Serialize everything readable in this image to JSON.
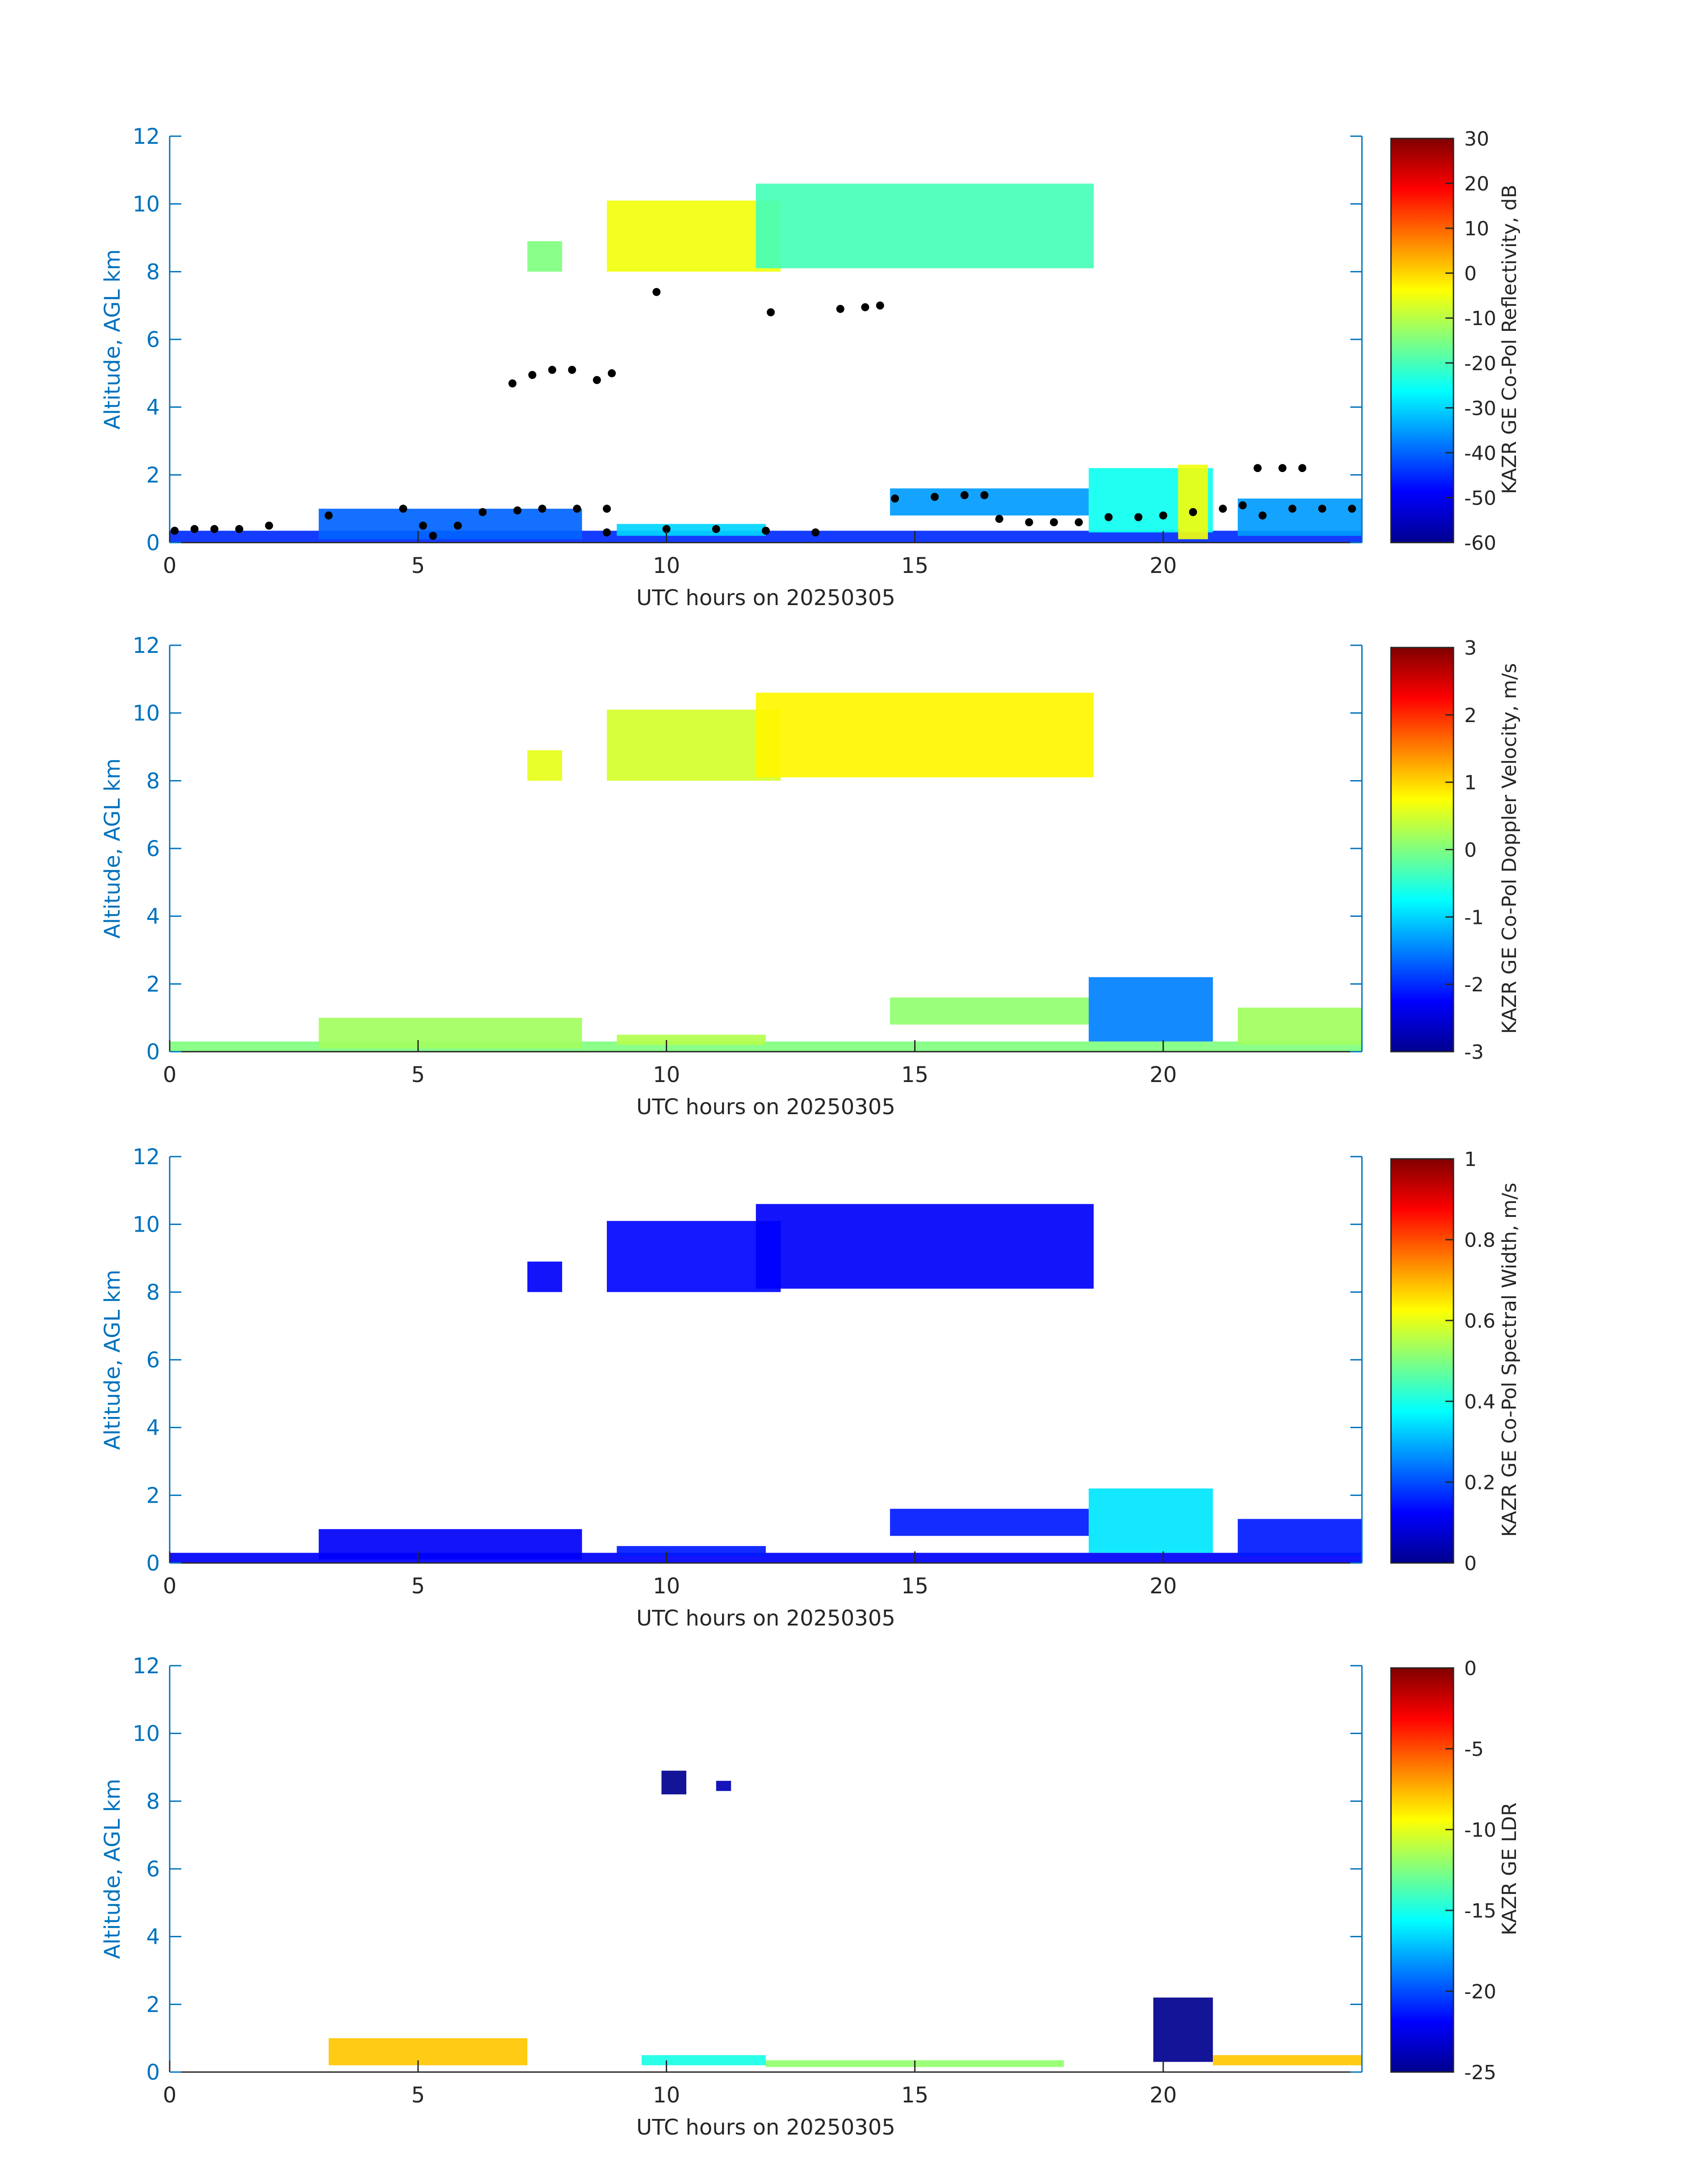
{
  "colormap": [
    "#00008f",
    "#0000ff",
    "#0080ff",
    "#00ffff",
    "#80ff80",
    "#ffff00",
    "#ff8000",
    "#ff0000",
    "#800000"
  ],
  "axis_color": "#0072bd",
  "chart_data": [
    {
      "type": "heatmap",
      "xlabel": "UTC hours on 20250305",
      "ylabel": "Altitude, AGL km",
      "xlim": [
        0,
        24
      ],
      "ylim": [
        0,
        12
      ],
      "xticks": [
        "0",
        "5",
        "10",
        "15",
        "20"
      ],
      "yticks": [
        "0",
        "2",
        "4",
        "6",
        "8",
        "10",
        "12"
      ],
      "colorbar": {
        "label": "KAZR GE Co-Pol Reflectivity, dB",
        "range": [
          -60,
          30
        ],
        "ticks": [
          "-60",
          "-50",
          "-40",
          "-30",
          "-20",
          "-10",
          "0",
          "10",
          "20",
          "30"
        ]
      },
      "regions": [
        {
          "x0": 7.2,
          "x1": 7.9,
          "y0": 8.0,
          "y1": 8.9,
          "v": -15
        },
        {
          "x0": 8.8,
          "x1": 12.3,
          "y0": 8.0,
          "y1": 10.1,
          "v": -5
        },
        {
          "x0": 11.8,
          "x1": 18.6,
          "y0": 8.1,
          "y1": 10.6,
          "v": -20
        },
        {
          "x0": 0,
          "x1": 24,
          "y0": 0.0,
          "y1": 0.35,
          "v": -45
        },
        {
          "x0": 3.0,
          "x1": 8.3,
          "y0": 0.1,
          "y1": 1.0,
          "v": -40
        },
        {
          "x0": 9.0,
          "x1": 12.0,
          "y0": 0.2,
          "y1": 0.55,
          "v": -30
        },
        {
          "x0": 14.5,
          "x1": 18.5,
          "y0": 0.8,
          "y1": 1.6,
          "v": -35
        },
        {
          "x0": 18.5,
          "x1": 21.0,
          "y0": 0.3,
          "y1": 2.2,
          "v": -25
        },
        {
          "x0": 20.3,
          "x1": 20.9,
          "y0": 0.1,
          "y1": 2.3,
          "v": -5
        },
        {
          "x0": 21.5,
          "x1": 24,
          "y0": 0.2,
          "y1": 1.3,
          "v": -35
        }
      ],
      "overlay_points": [
        [
          0.1,
          0.35
        ],
        [
          0.5,
          0.4
        ],
        [
          0.9,
          0.4
        ],
        [
          1.4,
          0.4
        ],
        [
          2.0,
          0.5
        ],
        [
          3.2,
          0.8
        ],
        [
          4.7,
          1.0
        ],
        [
          5.1,
          0.5
        ],
        [
          5.3,
          0.2
        ],
        [
          5.8,
          0.5
        ],
        [
          6.3,
          0.9
        ],
        [
          7.0,
          0.95
        ],
        [
          7.5,
          1.0
        ],
        [
          8.2,
          1.0
        ],
        [
          8.8,
          1.0
        ],
        [
          6.9,
          4.7
        ],
        [
          7.3,
          4.95
        ],
        [
          7.7,
          5.1
        ],
        [
          8.1,
          5.1
        ],
        [
          8.6,
          4.8
        ],
        [
          8.9,
          5.0
        ],
        [
          9.8,
          7.4
        ],
        [
          12.1,
          6.8
        ],
        [
          13.5,
          6.9
        ],
        [
          14.0,
          6.95
        ],
        [
          14.3,
          7.0
        ],
        [
          8.8,
          0.3
        ],
        [
          10.0,
          0.4
        ],
        [
          11.0,
          0.4
        ],
        [
          12.0,
          0.35
        ],
        [
          13.0,
          0.3
        ],
        [
          14.6,
          1.3
        ],
        [
          15.4,
          1.35
        ],
        [
          16.0,
          1.4
        ],
        [
          16.4,
          1.4
        ],
        [
          16.7,
          0.7
        ],
        [
          17.3,
          0.6
        ],
        [
          17.8,
          0.6
        ],
        [
          18.3,
          0.6
        ],
        [
          18.9,
          0.75
        ],
        [
          19.5,
          0.75
        ],
        [
          20.0,
          0.8
        ],
        [
          20.6,
          0.9
        ],
        [
          21.2,
          1.0
        ],
        [
          21.6,
          1.1
        ],
        [
          21.9,
          2.2
        ],
        [
          22.4,
          2.2
        ],
        [
          22.8,
          2.2
        ],
        [
          22.0,
          0.8
        ],
        [
          22.6,
          1.0
        ],
        [
          23.2,
          1.0
        ],
        [
          23.8,
          1.0
        ]
      ]
    },
    {
      "type": "heatmap",
      "xlabel": "UTC hours on 20250305",
      "ylabel": "Altitude, AGL km",
      "xlim": [
        0,
        24
      ],
      "ylim": [
        0,
        12
      ],
      "xticks": [
        "0",
        "5",
        "10",
        "15",
        "20"
      ],
      "yticks": [
        "0",
        "2",
        "4",
        "6",
        "8",
        "10",
        "12"
      ],
      "colorbar": {
        "label": "KAZR GE Co-Pol Doppler Velocity, m/s",
        "range": [
          -3,
          3
        ],
        "ticks": [
          "-3",
          "-2",
          "-1",
          "0",
          "1",
          "2",
          "3"
        ]
      },
      "regions": [
        {
          "x0": 7.2,
          "x1": 7.9,
          "y0": 8.0,
          "y1": 8.9,
          "v": 0.6
        },
        {
          "x0": 8.8,
          "x1": 12.3,
          "y0": 8.0,
          "y1": 10.1,
          "v": 0.5
        },
        {
          "x0": 11.8,
          "x1": 18.6,
          "y0": 8.1,
          "y1": 10.6,
          "v": 0.8
        },
        {
          "x0": 0,
          "x1": 24,
          "y0": 0.0,
          "y1": 0.3,
          "v": 0.0
        },
        {
          "x0": 3.0,
          "x1": 8.3,
          "y0": 0.1,
          "y1": 1.0,
          "v": 0.2
        },
        {
          "x0": 9.0,
          "x1": 12.0,
          "y0": 0.2,
          "y1": 0.5,
          "v": 0.3
        },
        {
          "x0": 14.5,
          "x1": 18.5,
          "y0": 0.8,
          "y1": 1.6,
          "v": 0.1
        },
        {
          "x0": 18.5,
          "x1": 21.0,
          "y0": 0.3,
          "y1": 2.2,
          "v": -1.5
        },
        {
          "x0": 21.5,
          "x1": 24,
          "y0": 0.2,
          "y1": 1.3,
          "v": 0.2
        }
      ]
    },
    {
      "type": "heatmap",
      "xlabel": "UTC hours on 20250305",
      "ylabel": "Altitude, AGL km",
      "xlim": [
        0,
        24
      ],
      "ylim": [
        0,
        12
      ],
      "xticks": [
        "0",
        "5",
        "10",
        "15",
        "20"
      ],
      "yticks": [
        "0",
        "2",
        "4",
        "6",
        "8",
        "10",
        "12"
      ],
      "colorbar": {
        "label": "KAZR GE Co-Pol Spectral Width, m/s",
        "range": [
          0,
          1
        ],
        "ticks": [
          "0",
          "0.2",
          "0.4",
          "0.6",
          "0.8",
          "1"
        ]
      },
      "regions": [
        {
          "x0": 7.2,
          "x1": 7.9,
          "y0": 8.0,
          "y1": 8.9,
          "v": 0.12
        },
        {
          "x0": 8.8,
          "x1": 12.3,
          "y0": 8.0,
          "y1": 10.1,
          "v": 0.13
        },
        {
          "x0": 11.8,
          "x1": 18.6,
          "y0": 8.1,
          "y1": 10.6,
          "v": 0.12
        },
        {
          "x0": 0,
          "x1": 24,
          "y0": 0.0,
          "y1": 0.3,
          "v": 0.12
        },
        {
          "x0": 3.0,
          "x1": 8.3,
          "y0": 0.1,
          "y1": 1.0,
          "v": 0.12
        },
        {
          "x0": 9.0,
          "x1": 12.0,
          "y0": 0.2,
          "y1": 0.5,
          "v": 0.15
        },
        {
          "x0": 14.5,
          "x1": 18.5,
          "y0": 0.8,
          "y1": 1.6,
          "v": 0.15
        },
        {
          "x0": 18.5,
          "x1": 21.0,
          "y0": 0.3,
          "y1": 2.2,
          "v": 0.35
        },
        {
          "x0": 21.5,
          "x1": 24,
          "y0": 0.2,
          "y1": 1.3,
          "v": 0.15
        }
      ]
    },
    {
      "type": "heatmap",
      "xlabel": "UTC hours on 20250305",
      "ylabel": "Altitude, AGL km",
      "xlim": [
        0,
        24
      ],
      "ylim": [
        0,
        12
      ],
      "xticks": [
        "0",
        "5",
        "10",
        "15",
        "20"
      ],
      "yticks": [
        "0",
        "2",
        "4",
        "6",
        "8",
        "10",
        "12"
      ],
      "colorbar": {
        "label": "KAZR GE LDR",
        "range": [
          -25,
          0
        ],
        "ticks": [
          "-25",
          "-20",
          "-15",
          "-10",
          "-5",
          "0"
        ]
      },
      "regions": [
        {
          "x0": 9.9,
          "x1": 10.4,
          "y0": 8.2,
          "y1": 8.9,
          "v": -25
        },
        {
          "x0": 11.0,
          "x1": 11.3,
          "y0": 8.3,
          "y1": 8.6,
          "v": -24
        },
        {
          "x0": 3.2,
          "x1": 7.2,
          "y0": 0.2,
          "y1": 1.0,
          "v": -8
        },
        {
          "x0": 9.5,
          "x1": 12.0,
          "y0": 0.2,
          "y1": 0.5,
          "v": -15
        },
        {
          "x0": 12.0,
          "x1": 18.0,
          "y0": 0.15,
          "y1": 0.35,
          "v": -12
        },
        {
          "x0": 19.8,
          "x1": 21.0,
          "y0": 0.3,
          "y1": 2.2,
          "v": -25
        },
        {
          "x0": 21.0,
          "x1": 24,
          "y0": 0.2,
          "y1": 0.5,
          "v": -8
        }
      ]
    }
  ]
}
